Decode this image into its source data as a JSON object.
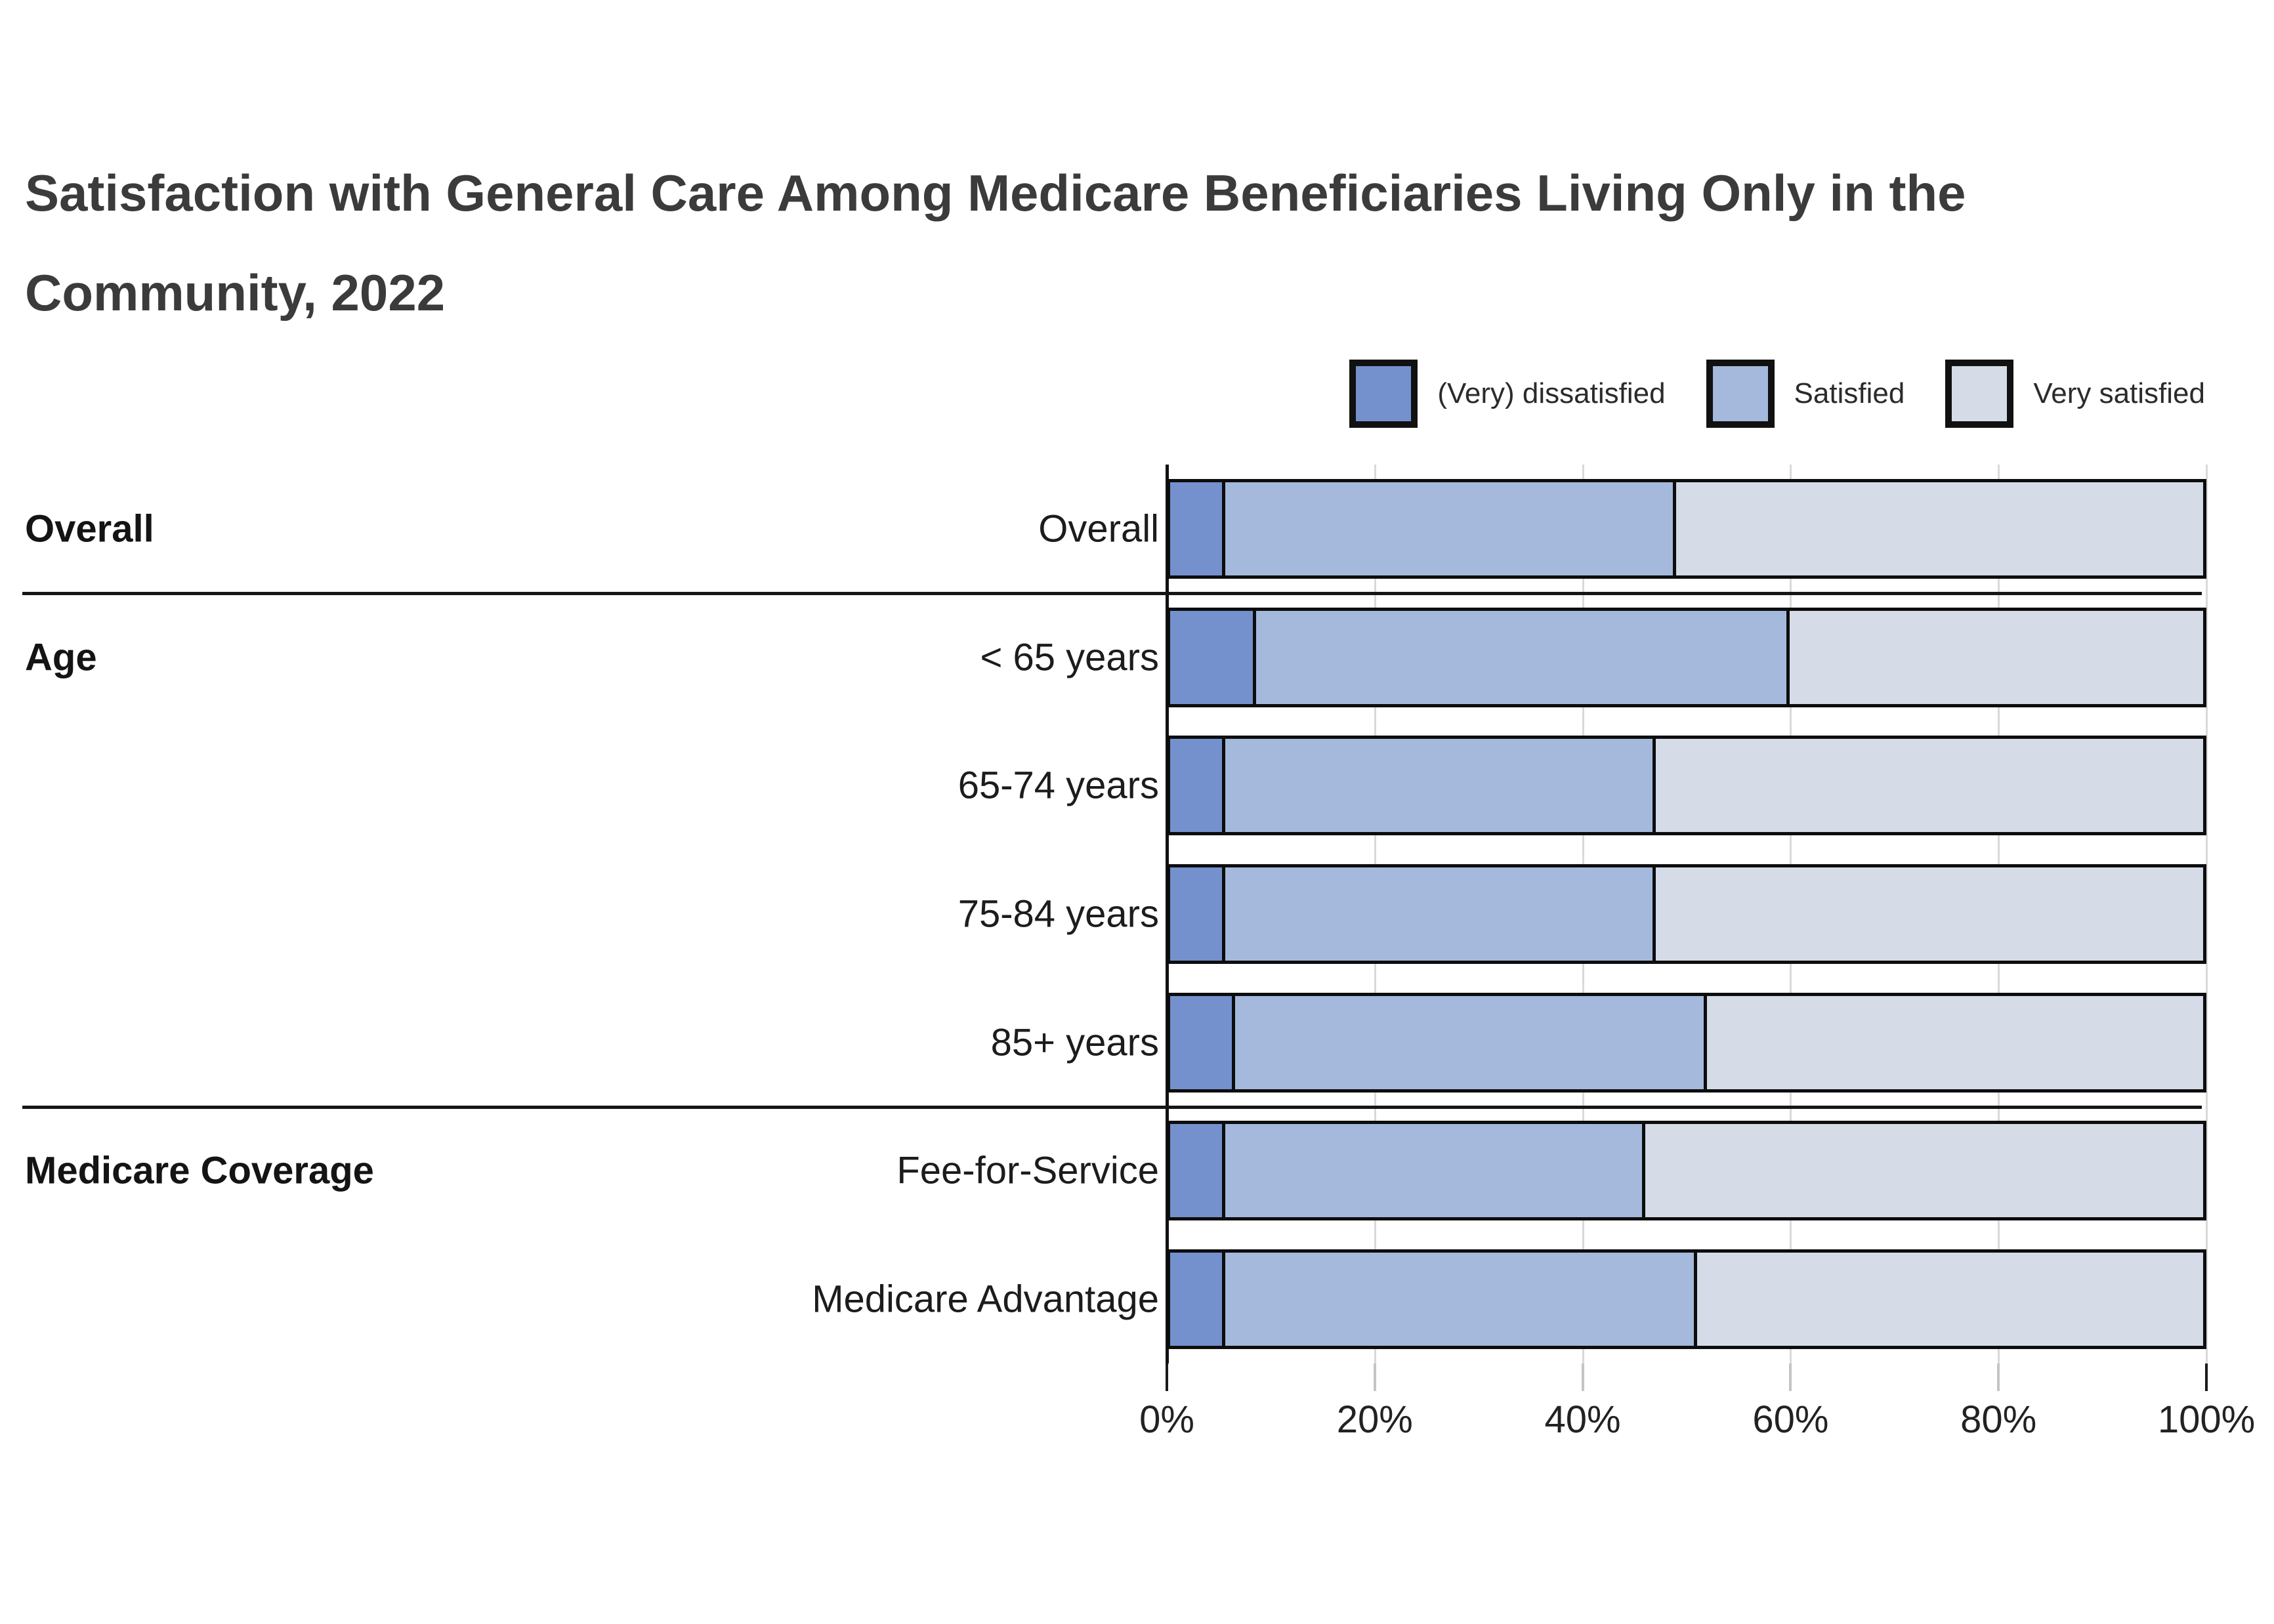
{
  "title": "Satisfaction with General Care Among Medicare Beneficiaries Living Only in the Community, 2022",
  "title_lines": [
    "Satisfaction with General Care Among Medicare Beneficiaries Living Only in the",
    "Community, 2022"
  ],
  "legend": [
    {
      "label": "(Very) dissatisfied",
      "color": "#7491ce"
    },
    {
      "label": "Satisfied",
      "color": "#a4b9dc"
    },
    {
      "label": "Very satisfied",
      "color": "#d5dce8"
    }
  ],
  "chart_data": {
    "type": "bar",
    "orientation": "horizontal",
    "stacked": true,
    "title": "Satisfaction with General Care Among Medicare Beneficiaries Living Only in the Community, 2022",
    "categories": [
      "Overall",
      "< 65 years",
      "65-74 years",
      "75-84 years",
      "85+ years",
      "Fee-for-Service",
      "Medicare Advantage"
    ],
    "groups": [
      {
        "label": "Overall",
        "rows": [
          0
        ]
      },
      {
        "label": "Age",
        "rows": [
          1,
          2,
          3,
          4
        ]
      },
      {
        "label": "Medicare Coverage",
        "rows": [
          5,
          6
        ]
      }
    ],
    "series": [
      {
        "name": "(Very) dissatisfied",
        "color": "#7491ce",
        "values": [
          5,
          8,
          5,
          5,
          6,
          5,
          5
        ]
      },
      {
        "name": "Satisfied",
        "color": "#a4b9dc",
        "values": [
          44,
          52,
          42,
          42,
          46,
          41,
          46
        ]
      },
      {
        "name": "Very satisfied",
        "color": "#d5dce8",
        "values": [
          51,
          40,
          53,
          53,
          48,
          54,
          49
        ]
      }
    ],
    "x_ticks": [
      "0%",
      "20%",
      "40%",
      "60%",
      "80%",
      "100%"
    ],
    "xlim": [
      0,
      100
    ],
    "xlabel": "",
    "ylabel": "",
    "grid": "vertical",
    "legend_position": "top-right",
    "bar_border_color": "#0d0d0d",
    "gridline_color": "#d9d9d9"
  }
}
